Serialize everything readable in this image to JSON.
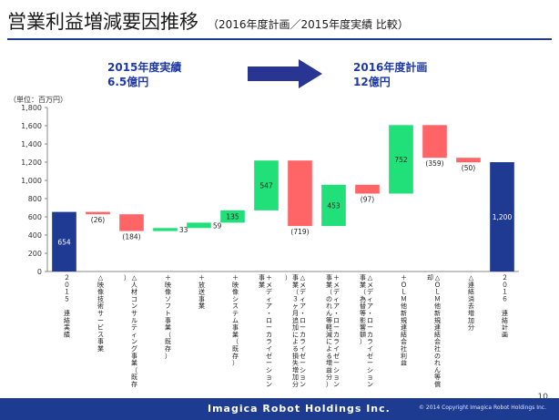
{
  "header": {
    "title": "営業利益増減要因推移",
    "subtitle": "（2016年度計画／2015年度実績 比較）"
  },
  "summary": {
    "left_line1": "2015年度実績",
    "left_line2": "6.5億円",
    "right_line1": "2016年度計画",
    "right_line2": "12億円"
  },
  "unit_label": "（単位：百万円）",
  "colors": {
    "total": "#1f3a93",
    "increase": "#21e07a",
    "decrease": "#ff6467",
    "title_rule": "#1e3a8a"
  },
  "chart_data": {
    "type": "waterfall",
    "title": "",
    "xlabel": "",
    "ylabel": "",
    "ylim": [
      0,
      1800
    ],
    "yticks": [
      0,
      200,
      400,
      600,
      800,
      1000,
      1200,
      1400,
      1600,
      1800
    ],
    "ytick_labels": [
      "0",
      "200",
      "400",
      "600",
      "800",
      "1,000",
      "1,200",
      "1,400",
      "1,600",
      "1,800"
    ],
    "grid": false,
    "bars": [
      {
        "category": "２０１５ 連結実績",
        "value": 654,
        "kind": "total",
        "label": "654"
      },
      {
        "category": "△映像技術サービス事業",
        "value": -26,
        "kind": "decrease",
        "label": "(26)"
      },
      {
        "category": "△人材コンサルティング事業（既存）",
        "value": -184,
        "kind": "decrease",
        "label": "(184)"
      },
      {
        "category": "＋映像ソフト事業（既存）",
        "value": 33,
        "kind": "increase",
        "label": "33"
      },
      {
        "category": "＋放送事業",
        "value": 59,
        "kind": "increase",
        "label": "59"
      },
      {
        "category": "＋映像システム事業（既存）",
        "value": 135,
        "kind": "increase",
        "label": "135"
      },
      {
        "category": "＋メディア・ローカライゼーション事業",
        "value": 547,
        "kind": "increase",
        "label": "547"
      },
      {
        "category": "△メディア・ローカライゼーション事業（３ヶ月追加による損失増加分）",
        "value": -719,
        "kind": "decrease",
        "label": "(719)"
      },
      {
        "category": "＋メディア・ローカライゼーション事業（のれん等軽減による増益分）",
        "value": 453,
        "kind": "increase",
        "label": "453"
      },
      {
        "category": "△メディア・ローカライゼーション事業（為替等影響額）",
        "value": -97,
        "kind": "decrease",
        "label": "(97)"
      },
      {
        "category": "＋ＯＬＭ他新規連結会社利益",
        "value": 752,
        "kind": "increase",
        "label": "752"
      },
      {
        "category": "△ＯＬＭ他新規連結会社のれん等償却",
        "value": -359,
        "kind": "decrease",
        "label": "(359)"
      },
      {
        "category": "△連結消去増加分",
        "value": -50,
        "kind": "decrease",
        "label": "(50)"
      },
      {
        "category": "２０１６ 連結計画",
        "value": 1200,
        "kind": "total",
        "label": "1,200"
      }
    ]
  },
  "footer": {
    "brand": "Imagica Robot Holdings Inc.",
    "copyright": "© 2014 Copyright Imagica Robot Holdings Inc.",
    "page_number": "10"
  }
}
